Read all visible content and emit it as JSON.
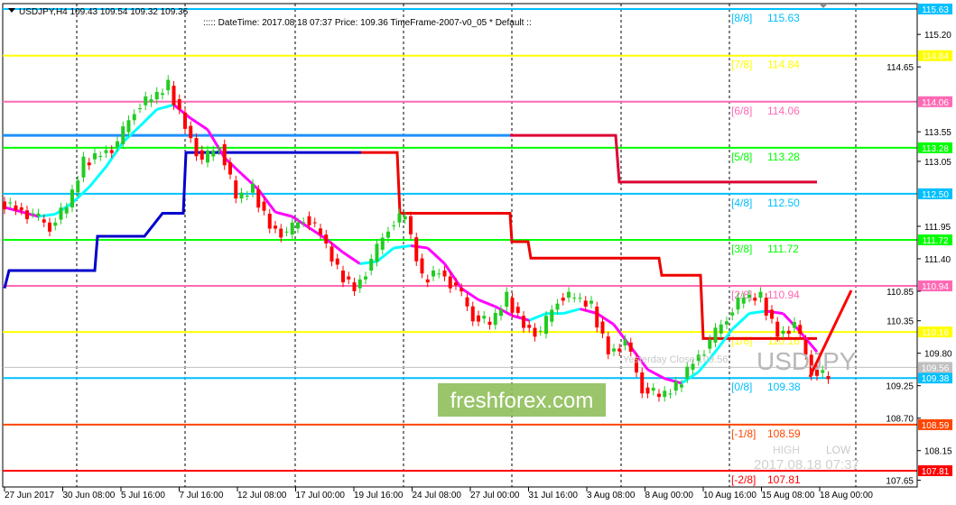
{
  "header": {
    "symbol_line": "USDJPY,H4  109.43 109.54 109.32 109.36",
    "info_line": ":::::  DateTime: 2017.08.18 07:37    Price: 109.36    TimeFrame-2007-v0_05    *  Default  ::"
  },
  "watermark": {
    "brand": "freshforex.com",
    "symbol": "USDJPY",
    "high_label": "HIGH",
    "low_label": "LOW",
    "timestamp": "2017.08.18 07:37",
    "yesterday_close": "Yesterday Close 109.56"
  },
  "chart_data": {
    "type": "candlestick",
    "ylim": [
      107.6,
      115.75
    ],
    "y_ticks": [
      "115.20",
      "114.65",
      "113.55",
      "113.05",
      "111.95",
      "111.40",
      "110.85",
      "110.35",
      "109.80",
      "109.25",
      "108.70",
      "108.15",
      "107.65"
    ],
    "x_ticks": [
      "27 Jun 2017",
      "30 Jun 08:00",
      "5 Jul 16:00",
      "7 Jul 16:00",
      "12 Jul 08:00",
      "17 Jul 00:00",
      "19 Jul 16:00",
      "24 Jul 08:00",
      "27 Jul 00:00",
      "31 Jul 16:00",
      "3 Aug 08:00",
      "8 Aug 00:00",
      "10 Aug 16:00",
      "15 Aug 08:00",
      "18 Aug 00:00"
    ],
    "closes": [
      112.27,
      112.12,
      111.96,
      112.27,
      113.03,
      113.19,
      113.34,
      113.95,
      114.1,
      114.33,
      113.65,
      113.03,
      113.34,
      112.42,
      112.57,
      111.96,
      111.81,
      112.12,
      111.81,
      111.2,
      110.9,
      111.35,
      111.96,
      112.12,
      111.05,
      111.2,
      110.9,
      110.44,
      110.28,
      110.74,
      110.28,
      110.13,
      110.74,
      110.74,
      110.59,
      109.83,
      109.98,
      109.22,
      109.06,
      109.22,
      109.67,
      109.98,
      110.44,
      110.74,
      110.74,
      110.13,
      110.28,
      109.52,
      109.36
    ],
    "murrey_levels": [
      {
        "label": "[8/8]",
        "price": "115.63",
        "color": "#00bfff"
      },
      {
        "label": "[7/8]",
        "price": "114.84",
        "color": "#ffff00"
      },
      {
        "label": "[6/8]",
        "price": "114.06",
        "color": "#ff69b4"
      },
      {
        "label": "[5/8]",
        "price": "113.28",
        "color": "#00ff00"
      },
      {
        "label": "[4/8]",
        "price": "112.50",
        "color": "#00bfff"
      },
      {
        "label": "[3/8]",
        "price": "111.72",
        "color": "#00ff00"
      },
      {
        "label": "[2/8]",
        "price": "110.94",
        "color": "#ff69b4"
      },
      {
        "label": "[1/8]",
        "price": "110.16",
        "color": "#ffff00"
      },
      {
        "label": "[0/8]",
        "price": "109.38",
        "color": "#00bfff"
      },
      {
        "label": "[-1/8]",
        "price": "108.59",
        "color": "#ff4500"
      },
      {
        "label": "[-2/8]",
        "price": "107.81",
        "color": "#ff0000"
      }
    ],
    "yesterday_close_tag": {
      "price": "109.56",
      "color": "#c0c0c0"
    },
    "bull_color": "#22cc22",
    "bear_color": "#ff0000"
  }
}
